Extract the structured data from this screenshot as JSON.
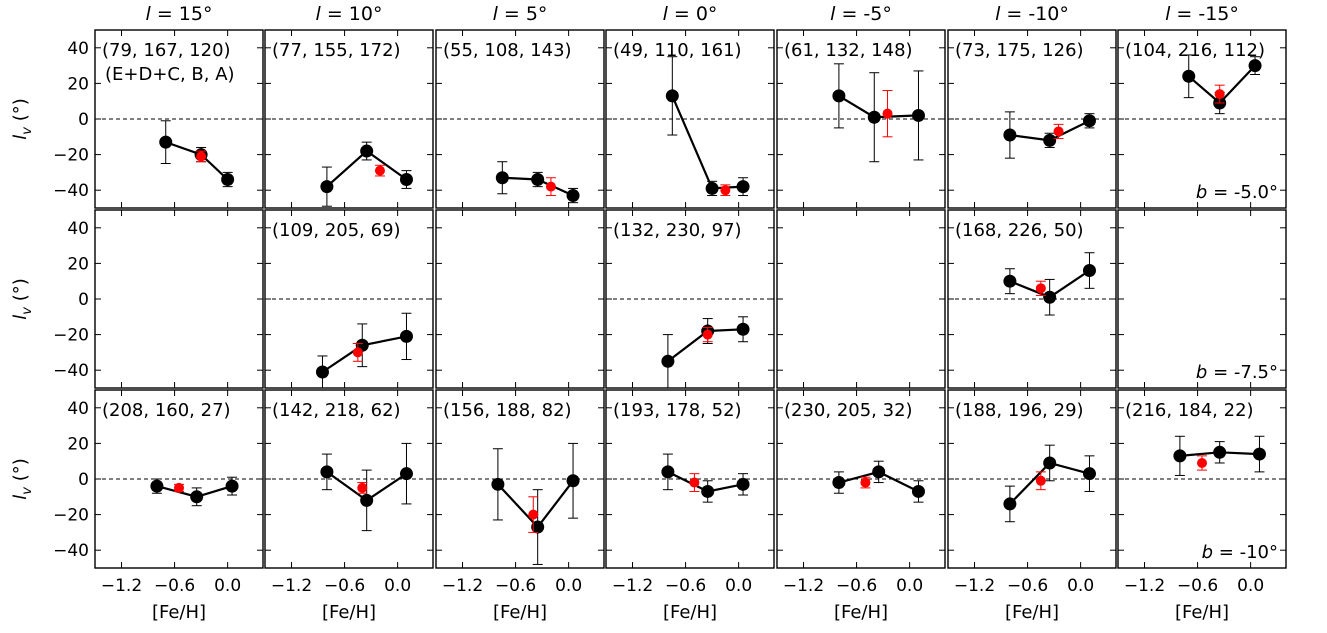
{
  "figure": {
    "x_axis_label": "[Fe/H]",
    "y_axis_label": "lv (°)",
    "xticks": [
      -1.2,
      -0.6,
      0.0
    ],
    "xtick_labels": [
      "−1.2",
      "−0.6",
      "0.0"
    ],
    "yticks": [
      -40,
      -20,
      0,
      20,
      40
    ],
    "ytick_labels": [
      "−40",
      "−20",
      "0",
      "20",
      "40"
    ],
    "xlim": [
      -1.5,
      0.4
    ],
    "ylim": [
      -50,
      50
    ],
    "column_titles": [
      "l = 15°",
      "l = 10°",
      "l = 5°",
      "l = 0°",
      "l = -5°",
      "l = -10°",
      "l = -15°"
    ],
    "row_titles": [
      "b = -5.0°",
      "b = -7.5°",
      "b = -10°"
    ],
    "counts_legend": "(E+D+C, B, A)",
    "colors": {
      "bin_points": "#000000",
      "all_stars_point": "#ff0000",
      "zero_line": "#000000"
    }
  },
  "chart_data": [
    {
      "type": "line",
      "row": 0,
      "col": 0,
      "counts": "(79, 167, 120)",
      "series": [
        {
          "name": "bins",
          "color": "#000000",
          "points": [
            {
              "x": -0.7,
              "y": -13,
              "err": 12
            },
            {
              "x": -0.3,
              "y": -20,
              "err": 4
            },
            {
              "x": 0.0,
              "y": -34,
              "err": 4
            }
          ]
        },
        {
          "name": "all",
          "color": "#ff0000",
          "points": [
            {
              "x": -0.3,
              "y": -21,
              "err": 3
            }
          ]
        }
      ]
    },
    {
      "type": "line",
      "row": 0,
      "col": 1,
      "counts": "(77, 155, 172)",
      "series": [
        {
          "name": "bins",
          "color": "#000000",
          "points": [
            {
              "x": -0.8,
              "y": -38,
              "err": 11
            },
            {
              "x": -0.35,
              "y": -18,
              "err": 5
            },
            {
              "x": 0.1,
              "y": -34,
              "err": 5
            }
          ]
        },
        {
          "name": "all",
          "color": "#ff0000",
          "points": [
            {
              "x": -0.2,
              "y": -29,
              "err": 3
            }
          ]
        }
      ]
    },
    {
      "type": "line",
      "row": 0,
      "col": 2,
      "counts": "(55, 108, 143)",
      "series": [
        {
          "name": "bins",
          "color": "#000000",
          "points": [
            {
              "x": -0.75,
              "y": -33,
              "err": 9
            },
            {
              "x": -0.35,
              "y": -34,
              "err": 4
            },
            {
              "x": 0.05,
              "y": -43,
              "err": 4
            }
          ]
        },
        {
          "name": "all",
          "color": "#ff0000",
          "points": [
            {
              "x": -0.2,
              "y": -38,
              "err": 5
            }
          ]
        }
      ]
    },
    {
      "type": "line",
      "row": 0,
      "col": 3,
      "counts": "(49, 110, 161)",
      "series": [
        {
          "name": "bins",
          "color": "#000000",
          "points": [
            {
              "x": -0.75,
              "y": 13,
              "err": 22
            },
            {
              "x": -0.3,
              "y": -39,
              "err": 4
            },
            {
              "x": 0.05,
              "y": -38,
              "err": 5
            }
          ]
        },
        {
          "name": "all",
          "color": "#ff0000",
          "points": [
            {
              "x": -0.15,
              "y": -40,
              "err": 3
            }
          ]
        }
      ]
    },
    {
      "type": "line",
      "row": 0,
      "col": 4,
      "counts": "(61, 132, 148)",
      "series": [
        {
          "name": "bins",
          "color": "#000000",
          "points": [
            {
              "x": -0.8,
              "y": 13,
              "err": 18
            },
            {
              "x": -0.4,
              "y": 1,
              "err": 25
            },
            {
              "x": 0.1,
              "y": 2,
              "err": 25
            }
          ]
        },
        {
          "name": "all",
          "color": "#ff0000",
          "points": [
            {
              "x": -0.25,
              "y": 3,
              "err": 13
            }
          ]
        }
      ]
    },
    {
      "type": "line",
      "row": 0,
      "col": 5,
      "counts": "(73, 175, 126)",
      "series": [
        {
          "name": "bins",
          "color": "#000000",
          "points": [
            {
              "x": -0.8,
              "y": -9,
              "err": 13
            },
            {
              "x": -0.35,
              "y": -12,
              "err": 4
            },
            {
              "x": 0.1,
              "y": -1,
              "err": 4
            }
          ]
        },
        {
          "name": "all",
          "color": "#ff0000",
          "points": [
            {
              "x": -0.25,
              "y": -7,
              "err": 4
            }
          ]
        }
      ]
    },
    {
      "type": "line",
      "row": 0,
      "col": 6,
      "counts": "(104, 216, 112)",
      "series": [
        {
          "name": "bins",
          "color": "#000000",
          "points": [
            {
              "x": -0.7,
              "y": 24,
              "err": 12
            },
            {
              "x": -0.35,
              "y": 9,
              "err": 6
            },
            {
              "x": 0.05,
              "y": 30,
              "err": 5
            }
          ]
        },
        {
          "name": "all",
          "color": "#ff0000",
          "points": [
            {
              "x": -0.35,
              "y": 14,
              "err": 5
            }
          ]
        }
      ]
    },
    {
      "type": "line",
      "row": 1,
      "col": 0,
      "counts": "",
      "series": []
    },
    {
      "type": "line",
      "row": 1,
      "col": 1,
      "counts": "(109, 205, 69)",
      "series": [
        {
          "name": "bins",
          "color": "#000000",
          "points": [
            {
              "x": -0.85,
              "y": -41,
              "err": 9
            },
            {
              "x": -0.4,
              "y": -26,
              "err": 12
            },
            {
              "x": 0.1,
              "y": -21,
              "err": 13
            }
          ]
        },
        {
          "name": "all",
          "color": "#ff0000",
          "points": [
            {
              "x": -0.45,
              "y": -30,
              "err": 5
            }
          ]
        }
      ]
    },
    {
      "type": "line",
      "row": 1,
      "col": 2,
      "counts": "",
      "series": []
    },
    {
      "type": "line",
      "row": 1,
      "col": 3,
      "counts": "(132, 230, 97)",
      "series": [
        {
          "name": "bins",
          "color": "#000000",
          "points": [
            {
              "x": -0.8,
              "y": -35,
              "err": 15
            },
            {
              "x": -0.35,
              "y": -18,
              "err": 7
            },
            {
              "x": 0.05,
              "y": -17,
              "err": 7
            }
          ]
        },
        {
          "name": "all",
          "color": "#ff0000",
          "points": [
            {
              "x": -0.35,
              "y": -20,
              "err": 4
            }
          ]
        }
      ]
    },
    {
      "type": "line",
      "row": 1,
      "col": 4,
      "counts": "",
      "series": []
    },
    {
      "type": "line",
      "row": 1,
      "col": 5,
      "counts": "(168, 226, 50)",
      "series": [
        {
          "name": "bins",
          "color": "#000000",
          "points": [
            {
              "x": -0.8,
              "y": 10,
              "err": 7
            },
            {
              "x": -0.35,
              "y": 1,
              "err": 10
            },
            {
              "x": 0.1,
              "y": 16,
              "err": 10
            }
          ]
        },
        {
          "name": "all",
          "color": "#ff0000",
          "points": [
            {
              "x": -0.45,
              "y": 6,
              "err": 4
            }
          ]
        }
      ]
    },
    {
      "type": "line",
      "row": 1,
      "col": 6,
      "counts": "",
      "series": []
    },
    {
      "type": "line",
      "row": 2,
      "col": 0,
      "counts": "(208, 160, 27)",
      "series": [
        {
          "name": "bins",
          "color": "#000000",
          "points": [
            {
              "x": -0.8,
              "y": -4,
              "err": 4
            },
            {
              "x": -0.35,
              "y": -10,
              "err": 5
            },
            {
              "x": 0.05,
              "y": -4,
              "err": 5
            }
          ]
        },
        {
          "name": "all",
          "color": "#ff0000",
          "points": [
            {
              "x": -0.55,
              "y": -5,
              "err": 2
            }
          ]
        }
      ]
    },
    {
      "type": "line",
      "row": 2,
      "col": 1,
      "counts": "(142, 218, 62)",
      "series": [
        {
          "name": "bins",
          "color": "#000000",
          "points": [
            {
              "x": -0.8,
              "y": 4,
              "err": 10
            },
            {
              "x": -0.35,
              "y": -12,
              "err": 17
            },
            {
              "x": 0.1,
              "y": 3,
              "err": 17
            }
          ]
        },
        {
          "name": "all",
          "color": "#ff0000",
          "points": [
            {
              "x": -0.4,
              "y": -5,
              "err": 3
            }
          ]
        }
      ]
    },
    {
      "type": "line",
      "row": 2,
      "col": 2,
      "counts": "(156, 188, 82)",
      "series": [
        {
          "name": "bins",
          "color": "#000000",
          "points": [
            {
              "x": -0.8,
              "y": -3,
              "err": 20
            },
            {
              "x": -0.35,
              "y": -27,
              "err": 21
            },
            {
              "x": 0.05,
              "y": -1,
              "err": 21
            }
          ]
        },
        {
          "name": "all",
          "color": "#ff0000",
          "points": [
            {
              "x": -0.4,
              "y": -20,
              "err": 10
            }
          ]
        }
      ]
    },
    {
      "type": "line",
      "row": 2,
      "col": 3,
      "counts": "(193, 178, 52)",
      "series": [
        {
          "name": "bins",
          "color": "#000000",
          "points": [
            {
              "x": -0.8,
              "y": 4,
              "err": 10
            },
            {
              "x": -0.35,
              "y": -7,
              "err": 6
            },
            {
              "x": 0.05,
              "y": -3,
              "err": 6
            }
          ]
        },
        {
          "name": "all",
          "color": "#ff0000",
          "points": [
            {
              "x": -0.5,
              "y": -2,
              "err": 5
            }
          ]
        }
      ]
    },
    {
      "type": "line",
      "row": 2,
      "col": 4,
      "counts": "(230, 205, 32)",
      "series": [
        {
          "name": "bins",
          "color": "#000000",
          "points": [
            {
              "x": -0.8,
              "y": -2,
              "err": 6
            },
            {
              "x": -0.35,
              "y": 4,
              "err": 6
            },
            {
              "x": 0.1,
              "y": -7,
              "err": 6
            }
          ]
        },
        {
          "name": "all",
          "color": "#ff0000",
          "points": [
            {
              "x": -0.5,
              "y": -2,
              "err": 3
            }
          ]
        }
      ]
    },
    {
      "type": "line",
      "row": 2,
      "col": 5,
      "counts": "(188, 196, 29)",
      "series": [
        {
          "name": "bins",
          "color": "#000000",
          "points": [
            {
              "x": -0.8,
              "y": -14,
              "err": 10
            },
            {
              "x": -0.35,
              "y": 9,
              "err": 10
            },
            {
              "x": 0.1,
              "y": 3,
              "err": 10
            }
          ]
        },
        {
          "name": "all",
          "color": "#ff0000",
          "points": [
            {
              "x": -0.45,
              "y": -1,
              "err": 5
            }
          ]
        }
      ]
    },
    {
      "type": "line",
      "row": 2,
      "col": 6,
      "counts": "(216, 184, 22)",
      "series": [
        {
          "name": "bins",
          "color": "#000000",
          "points": [
            {
              "x": -0.8,
              "y": 13,
              "err": 11
            },
            {
              "x": -0.35,
              "y": 15,
              "err": 6
            },
            {
              "x": 0.1,
              "y": 14,
              "err": 10
            }
          ]
        },
        {
          "name": "all",
          "color": "#ff0000",
          "points": [
            {
              "x": -0.55,
              "y": 9,
              "err": 4
            }
          ]
        }
      ]
    }
  ]
}
